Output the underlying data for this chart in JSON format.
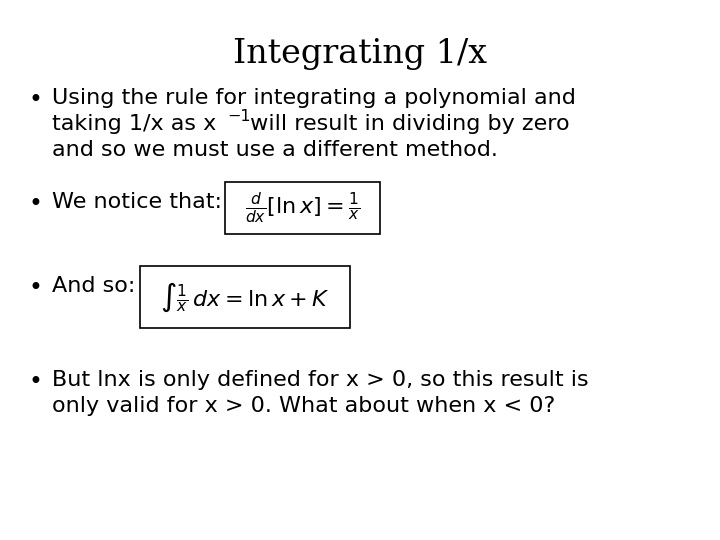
{
  "title": "Integrating 1/x",
  "title_fontsize": 24,
  "background_color": "#ffffff",
  "text_color": "#000000",
  "bullet1_line1": "Using the rule for integrating a polynomial and",
  "bullet1_line2a": "taking 1/x as x",
  "bullet1_sup": "−1",
  "bullet1_line2b": " will result in dividing by zero",
  "bullet1_line3": "and so we must use a different method.",
  "bullet2_prefix": "We notice that:",
  "bullet2_formula": "\\frac{d}{dx}\\left[\\ln x\\right]=\\frac{1}{x}",
  "bullet3_prefix": "And so:",
  "bullet3_formula": "\\int \\frac{1}{x}\\,dx = \\ln x + K",
  "bullet4_line1": "But lnx is only defined for x > 0, so this result is",
  "bullet4_line2": "only valid for x > 0. What about when x < 0?",
  "body_fontsize": 16,
  "formula_fontsize": 16,
  "bullet_char": "•"
}
